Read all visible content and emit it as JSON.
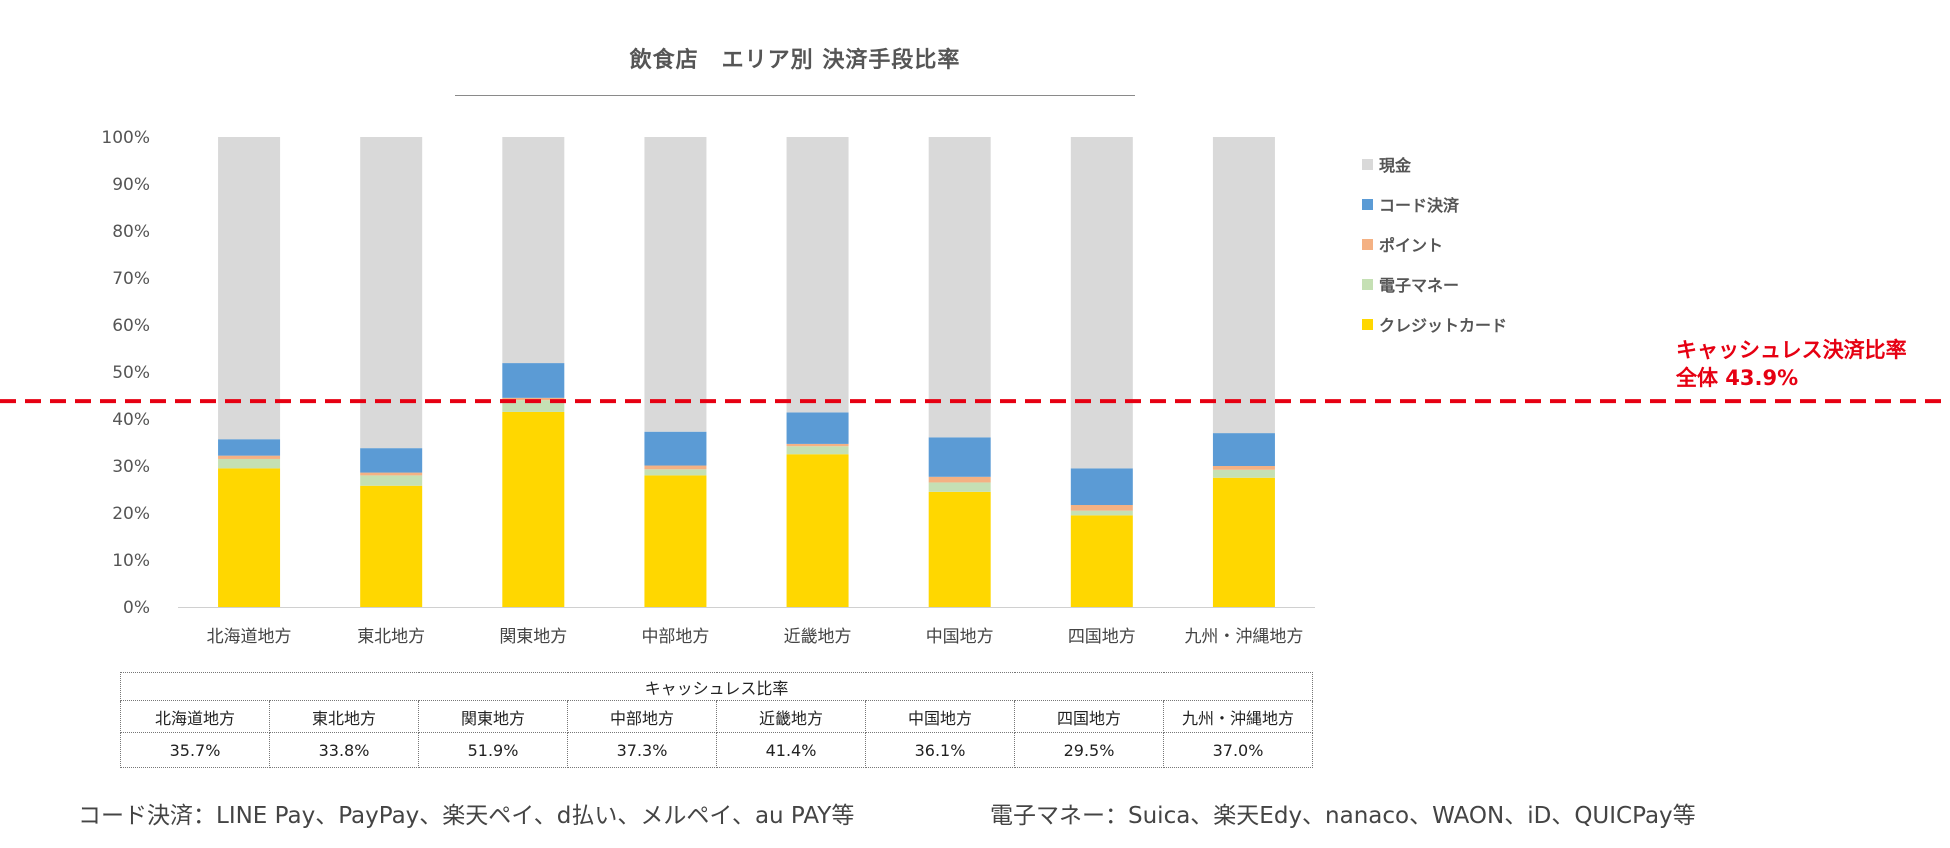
{
  "chart_data": {
    "type": "bar",
    "stacked": true,
    "title": "飲食店　エリア別 決済手段比率",
    "categories": [
      "北海道地方",
      "東北地方",
      "関東地方",
      "中部地方",
      "近畿地方",
      "中国地方",
      "四国地方",
      "九州・沖縄地方"
    ],
    "y_ticks": [
      "0%",
      "10%",
      "20%",
      "30%",
      "40%",
      "50%",
      "60%",
      "70%",
      "80%",
      "90%",
      "100%"
    ],
    "ylim": [
      0,
      100
    ],
    "series": [
      {
        "name": "クレジットカード",
        "color": "#FFD700",
        "values": [
          29.5,
          25.8,
          41.5,
          28.0,
          32.5,
          24.5,
          19.5,
          27.5
        ]
      },
      {
        "name": "電子マネー",
        "color": "#C5E0B4",
        "values": [
          2.0,
          2.2,
          2.5,
          1.3,
          1.7,
          2.0,
          1.0,
          1.7
        ]
      },
      {
        "name": "ポイント",
        "color": "#F4B183",
        "values": [
          0.7,
          0.6,
          0.5,
          0.8,
          0.5,
          1.2,
          1.2,
          0.8
        ]
      },
      {
        "name": "コード決済",
        "color": "#5B9BD5",
        "values": [
          3.5,
          5.2,
          7.4,
          7.2,
          6.7,
          8.4,
          7.8,
          7.0
        ]
      },
      {
        "name": "現金",
        "color": "#D9D9D9",
        "values": [
          64.3,
          66.2,
          48.1,
          62.7,
          58.6,
          63.9,
          70.5,
          63.0
        ]
      }
    ],
    "legend_order": [
      "現金",
      "コード決済",
      "ポイント",
      "電子マネー",
      "クレジットカード"
    ],
    "reference_line": {
      "value": 43.9,
      "color": "#E60012",
      "style": "dashed"
    },
    "annotation": {
      "line1": "キャッシュレス決済比率",
      "line2": "全体 43.9%"
    }
  },
  "table": {
    "caption": "キャッシュレス比率",
    "regions": [
      "北海道地方",
      "東北地方",
      "関東地方",
      "中部地方",
      "近畿地方",
      "中国地方",
      "四国地方",
      "九州・沖縄地方"
    ],
    "values": [
      "35.7%",
      "33.8%",
      "51.9%",
      "37.3%",
      "41.4%",
      "36.1%",
      "29.5%",
      "37.0%"
    ]
  },
  "footnotes": {
    "code_payment": "コード決済：LINE Pay、PayPay、楽天ペイ、d払い、メルペイ、au PAY等",
    "e_money": "電子マネー：Suica、楽天Edy、nanaco、WAON、iD、QUICPay等"
  }
}
